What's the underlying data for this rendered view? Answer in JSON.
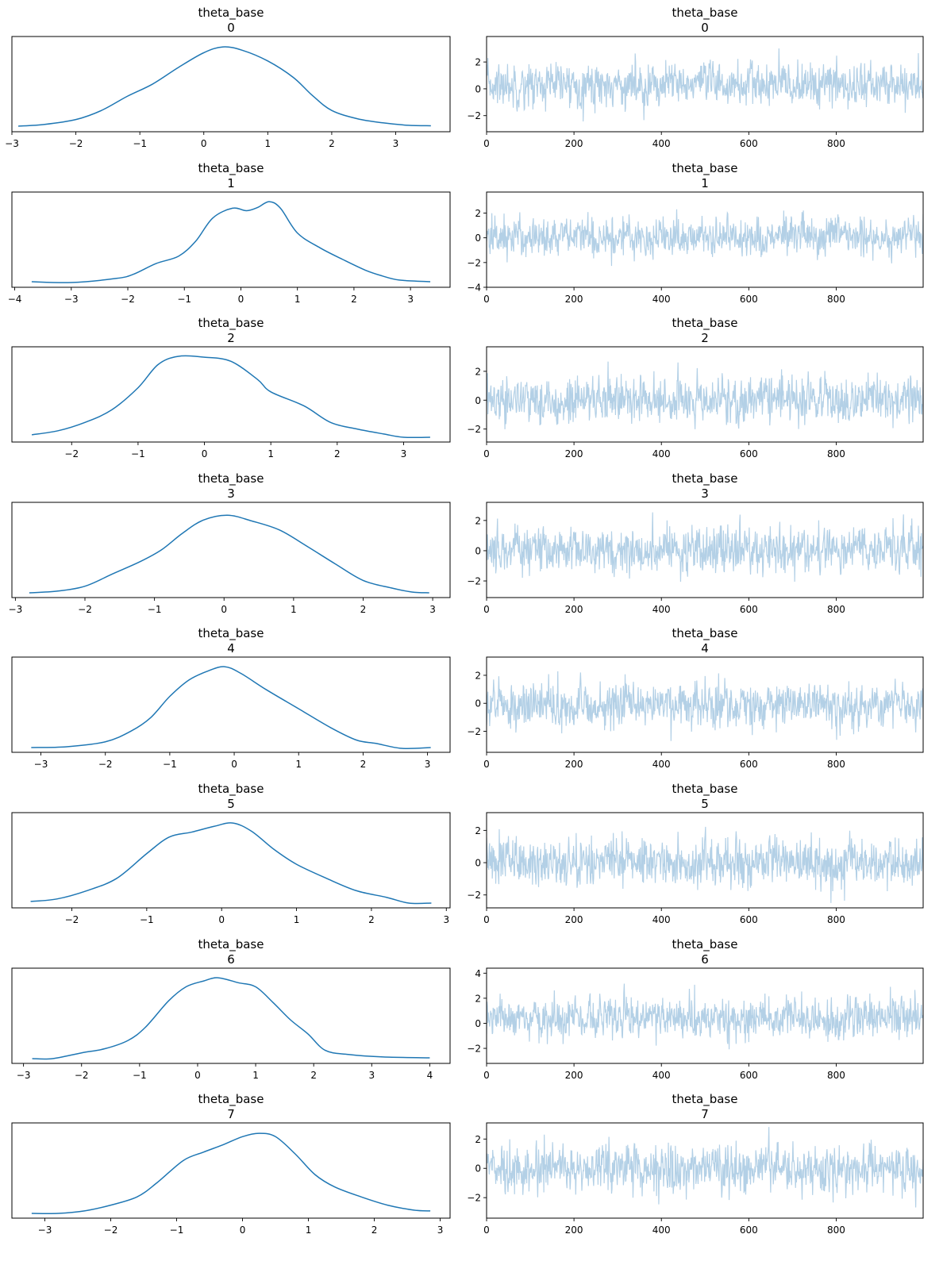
{
  "figure": {
    "type": "trace_plot",
    "variable": "theta_base",
    "columns": [
      "kde",
      "trace"
    ]
  },
  "colors": {
    "kde_line": "#1f77b4",
    "trace_line": "#b3d0e6",
    "axes": "#000000",
    "background": "#ffffff"
  },
  "chart_data": [
    {
      "type": "line",
      "panel": "kde",
      "title": "theta_base",
      "subtitle": "0",
      "xlim": [
        -3.0,
        3.85
      ],
      "xticks": [
        -3,
        -2,
        -1,
        0,
        1,
        2,
        3
      ],
      "x_range": [
        -2.9,
        3.55
      ],
      "yticks_visible": false,
      "curve": [
        [
          -2.9,
          0.01
        ],
        [
          -2.5,
          0.03
        ],
        [
          -2.0,
          0.09
        ],
        [
          -1.6,
          0.2
        ],
        [
          -1.2,
          0.37
        ],
        [
          -0.8,
          0.52
        ],
        [
          -0.4,
          0.72
        ],
        [
          0.0,
          0.9
        ],
        [
          0.3,
          0.97
        ],
        [
          0.6,
          0.93
        ],
        [
          1.0,
          0.8
        ],
        [
          1.4,
          0.6
        ],
        [
          1.7,
          0.38
        ],
        [
          2.0,
          0.2
        ],
        [
          2.4,
          0.1
        ],
        [
          2.8,
          0.05
        ],
        [
          3.2,
          0.02
        ],
        [
          3.55,
          0.015
        ]
      ]
    },
    {
      "type": "line",
      "panel": "trace",
      "title": "theta_base",
      "subtitle": "0",
      "xlim": [
        0,
        999
      ],
      "xticks": [
        0,
        200,
        400,
        600,
        800
      ],
      "ylim": [
        -3.2,
        3.9
      ],
      "yticks": [
        -2,
        0,
        2
      ],
      "n_draws": 1000,
      "mean": 0.3,
      "sd": 0.95,
      "min": -2.9,
      "max": 3.6
    },
    {
      "type": "line",
      "panel": "kde",
      "title": "theta_base",
      "subtitle": "1",
      "xlim": [
        -4.05,
        3.7
      ],
      "xticks": [
        -4,
        -3,
        -2,
        -1,
        0,
        1,
        2,
        3
      ],
      "x_range": [
        -3.7,
        3.35
      ],
      "yticks_visible": false,
      "curve": [
        [
          -3.7,
          0.01
        ],
        [
          -3.0,
          0.0
        ],
        [
          -2.2,
          0.05
        ],
        [
          -1.9,
          0.1
        ],
        [
          -1.5,
          0.23
        ],
        [
          -1.1,
          0.32
        ],
        [
          -0.8,
          0.5
        ],
        [
          -0.5,
          0.78
        ],
        [
          -0.15,
          0.9
        ],
        [
          0.1,
          0.87
        ],
        [
          0.3,
          0.91
        ],
        [
          0.5,
          0.98
        ],
        [
          0.7,
          0.9
        ],
        [
          1.0,
          0.6
        ],
        [
          1.4,
          0.42
        ],
        [
          1.8,
          0.28
        ],
        [
          2.2,
          0.15
        ],
        [
          2.5,
          0.08
        ],
        [
          2.8,
          0.03
        ],
        [
          3.35,
          0.01
        ]
      ]
    },
    {
      "type": "line",
      "panel": "trace",
      "title": "theta_base",
      "subtitle": "1",
      "xlim": [
        0,
        999
      ],
      "xticks": [
        0,
        200,
        400,
        600,
        800
      ],
      "ylim": [
        -4.0,
        3.7
      ],
      "yticks": [
        -4,
        -2,
        0,
        2
      ],
      "n_draws": 1000,
      "mean": 0.1,
      "sd": 0.95,
      "min": -3.7,
      "max": 3.4
    },
    {
      "type": "line",
      "panel": "kde",
      "title": "theta_base",
      "subtitle": "2",
      "xlim": [
        -2.9,
        3.7
      ],
      "xticks": [
        -2,
        -1,
        0,
        1,
        2,
        3
      ],
      "x_range": [
        -2.6,
        3.4
      ],
      "yticks_visible": false,
      "curve": [
        [
          -2.6,
          0.03
        ],
        [
          -2.2,
          0.08
        ],
        [
          -1.8,
          0.18
        ],
        [
          -1.4,
          0.33
        ],
        [
          -1.0,
          0.6
        ],
        [
          -0.7,
          0.88
        ],
        [
          -0.4,
          0.98
        ],
        [
          0.0,
          0.97
        ],
        [
          0.4,
          0.92
        ],
        [
          0.8,
          0.7
        ],
        [
          1.0,
          0.55
        ],
        [
          1.5,
          0.38
        ],
        [
          1.9,
          0.18
        ],
        [
          2.3,
          0.1
        ],
        [
          2.7,
          0.04
        ],
        [
          3.0,
          0.0
        ],
        [
          3.4,
          0.0
        ]
      ]
    },
    {
      "type": "line",
      "panel": "trace",
      "title": "theta_base",
      "subtitle": "2",
      "xlim": [
        0,
        999
      ],
      "xticks": [
        0,
        200,
        400,
        600,
        800
      ],
      "ylim": [
        -2.9,
        3.7
      ],
      "yticks": [
        -2,
        0,
        2
      ],
      "n_draws": 1000,
      "mean": 0.0,
      "sd": 0.95,
      "min": -2.6,
      "max": 3.4
    },
    {
      "type": "line",
      "panel": "kde",
      "title": "theta_base",
      "subtitle": "3",
      "xlim": [
        -3.05,
        3.25
      ],
      "xticks": [
        -3,
        -2,
        -1,
        0,
        1,
        2,
        3
      ],
      "x_range": [
        -2.8,
        2.95
      ],
      "yticks_visible": false,
      "curve": [
        [
          -2.8,
          0.0
        ],
        [
          -2.4,
          0.02
        ],
        [
          -2.0,
          0.08
        ],
        [
          -1.6,
          0.23
        ],
        [
          -1.2,
          0.38
        ],
        [
          -0.9,
          0.52
        ],
        [
          -0.6,
          0.72
        ],
        [
          -0.3,
          0.88
        ],
        [
          0.05,
          0.94
        ],
        [
          0.4,
          0.87
        ],
        [
          0.8,
          0.76
        ],
        [
          1.2,
          0.56
        ],
        [
          1.6,
          0.35
        ],
        [
          2.0,
          0.15
        ],
        [
          2.4,
          0.06
        ],
        [
          2.7,
          0.01
        ],
        [
          2.95,
          0.0
        ]
      ]
    },
    {
      "type": "line",
      "panel": "trace",
      "title": "theta_base",
      "subtitle": "3",
      "xlim": [
        0,
        999
      ],
      "xticks": [
        0,
        200,
        400,
        600,
        800
      ],
      "ylim": [
        -3.1,
        3.2
      ],
      "yticks": [
        -2,
        0,
        2
      ],
      "n_draws": 1000,
      "mean": 0.05,
      "sd": 0.9,
      "min": -2.8,
      "max": 3.0
    },
    {
      "type": "line",
      "panel": "kde",
      "title": "theta_base",
      "subtitle": "4",
      "xlim": [
        -3.45,
        3.35
      ],
      "xticks": [
        -3,
        -2,
        -1,
        0,
        1,
        2,
        3
      ],
      "x_range": [
        -3.15,
        3.05
      ],
      "yticks_visible": false,
      "curve": [
        [
          -3.15,
          0.0
        ],
        [
          -2.6,
          0.01
        ],
        [
          -2.0,
          0.07
        ],
        [
          -1.6,
          0.2
        ],
        [
          -1.3,
          0.36
        ],
        [
          -1.0,
          0.62
        ],
        [
          -0.7,
          0.82
        ],
        [
          -0.4,
          0.93
        ],
        [
          -0.15,
          0.98
        ],
        [
          0.1,
          0.9
        ],
        [
          0.5,
          0.7
        ],
        [
          1.0,
          0.47
        ],
        [
          1.5,
          0.24
        ],
        [
          1.9,
          0.09
        ],
        [
          2.2,
          0.05
        ],
        [
          2.6,
          -0.01
        ],
        [
          3.05,
          0.0
        ]
      ]
    },
    {
      "type": "line",
      "panel": "trace",
      "title": "theta_base",
      "subtitle": "4",
      "xlim": [
        0,
        999
      ],
      "xticks": [
        0,
        200,
        400,
        600,
        800
      ],
      "ylim": [
        -3.5,
        3.3
      ],
      "yticks": [
        -2,
        0,
        2
      ],
      "n_draws": 1000,
      "mean": -0.1,
      "sd": 0.9,
      "min": -3.2,
      "max": 3.1
    },
    {
      "type": "line",
      "panel": "kde",
      "title": "theta_base",
      "subtitle": "5",
      "xlim": [
        -2.8,
        3.05
      ],
      "xticks": [
        -2,
        -1,
        0,
        1,
        2,
        3
      ],
      "x_range": [
        -2.55,
        2.8
      ],
      "yticks_visible": false,
      "curve": [
        [
          -2.55,
          0.02
        ],
        [
          -2.2,
          0.05
        ],
        [
          -1.8,
          0.15
        ],
        [
          -1.4,
          0.3
        ],
        [
          -1.0,
          0.6
        ],
        [
          -0.7,
          0.8
        ],
        [
          -0.4,
          0.86
        ],
        [
          -0.1,
          0.93
        ],
        [
          0.15,
          0.97
        ],
        [
          0.4,
          0.87
        ],
        [
          0.7,
          0.65
        ],
        [
          1.0,
          0.47
        ],
        [
          1.4,
          0.3
        ],
        [
          1.8,
          0.15
        ],
        [
          2.2,
          0.07
        ],
        [
          2.5,
          0.0
        ],
        [
          2.8,
          0.0
        ]
      ]
    },
    {
      "type": "line",
      "panel": "trace",
      "title": "theta_base",
      "subtitle": "5",
      "xlim": [
        0,
        999
      ],
      "xticks": [
        0,
        200,
        400,
        600,
        800
      ],
      "ylim": [
        -2.8,
        3.1
      ],
      "yticks": [
        -2,
        0,
        2
      ],
      "n_draws": 1000,
      "mean": 0.0,
      "sd": 0.9,
      "min": -2.5,
      "max": 2.8
    },
    {
      "type": "line",
      "panel": "kde",
      "title": "theta_base",
      "subtitle": "6",
      "xlim": [
        -3.2,
        4.35
      ],
      "xticks": [
        -3,
        -2,
        -1,
        0,
        1,
        2,
        3,
        4
      ],
      "x_range": [
        -2.85,
        4.0
      ],
      "yticks_visible": false,
      "curve": [
        [
          -2.85,
          0.0
        ],
        [
          -2.5,
          0.0
        ],
        [
          -2.0,
          0.07
        ],
        [
          -1.6,
          0.12
        ],
        [
          -1.2,
          0.22
        ],
        [
          -0.9,
          0.38
        ],
        [
          -0.5,
          0.7
        ],
        [
          -0.2,
          0.87
        ],
        [
          0.1,
          0.94
        ],
        [
          0.35,
          0.98
        ],
        [
          0.7,
          0.92
        ],
        [
          1.0,
          0.87
        ],
        [
          1.3,
          0.68
        ],
        [
          1.6,
          0.47
        ],
        [
          1.9,
          0.3
        ],
        [
          2.2,
          0.1
        ],
        [
          2.6,
          0.05
        ],
        [
          3.2,
          0.02
        ],
        [
          4.0,
          0.01
        ]
      ]
    },
    {
      "type": "line",
      "panel": "trace",
      "title": "theta_base",
      "subtitle": "6",
      "xlim": [
        0,
        999
      ],
      "xticks": [
        0,
        200,
        400,
        600,
        800
      ],
      "ylim": [
        -3.2,
        4.4
      ],
      "yticks": [
        -2,
        0,
        2,
        4
      ],
      "n_draws": 1000,
      "mean": 0.4,
      "sd": 0.95,
      "min": -2.9,
      "max": 4.1
    },
    {
      "type": "line",
      "panel": "kde",
      "title": "theta_base",
      "subtitle": "7",
      "xlim": [
        -3.5,
        3.15
      ],
      "xticks": [
        -3,
        -2,
        -1,
        0,
        1,
        2,
        3
      ],
      "x_range": [
        -3.2,
        2.85
      ],
      "yticks_visible": false,
      "curve": [
        [
          -3.2,
          0.0
        ],
        [
          -2.8,
          0.0
        ],
        [
          -2.4,
          0.03
        ],
        [
          -2.0,
          0.1
        ],
        [
          -1.6,
          0.2
        ],
        [
          -1.3,
          0.37
        ],
        [
          -0.9,
          0.64
        ],
        [
          -0.6,
          0.74
        ],
        [
          -0.3,
          0.83
        ],
        [
          0.0,
          0.93
        ],
        [
          0.25,
          0.97
        ],
        [
          0.5,
          0.93
        ],
        [
          0.8,
          0.72
        ],
        [
          1.1,
          0.47
        ],
        [
          1.4,
          0.32
        ],
        [
          1.8,
          0.2
        ],
        [
          2.2,
          0.1
        ],
        [
          2.6,
          0.04
        ],
        [
          2.85,
          0.03
        ]
      ]
    },
    {
      "type": "line",
      "panel": "trace",
      "title": "theta_base",
      "subtitle": "7",
      "xlim": [
        0,
        999
      ],
      "xticks": [
        0,
        200,
        400,
        600,
        800
      ],
      "ylim": [
        -3.4,
        3.1
      ],
      "yticks": [
        -2,
        0,
        2
      ],
      "n_draws": 1000,
      "mean": 0.0,
      "sd": 0.9,
      "min": -3.2,
      "max": 2.9
    }
  ]
}
